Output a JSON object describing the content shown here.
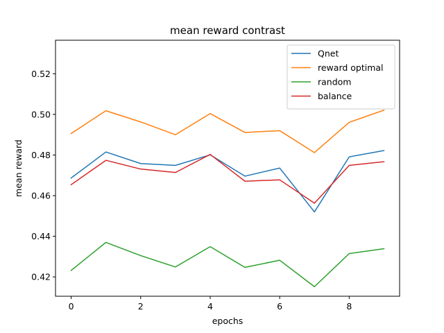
{
  "chart_data": {
    "type": "line",
    "title": "mean reward contrast",
    "xlabel": "epochs",
    "ylabel": "mean reward",
    "x": [
      0,
      1,
      2,
      3,
      4,
      5,
      6,
      7,
      8,
      9
    ],
    "xlim": [
      -0.45,
      9.45
    ],
    "ylim": [
      0.4105,
      0.5365
    ],
    "xticks": [
      0,
      2,
      4,
      6,
      8
    ],
    "yticks": [
      0.42,
      0.44,
      0.46,
      0.48,
      0.5,
      0.52
    ],
    "ytick_labels": [
      "0.42",
      "0.44",
      "0.46",
      "0.48",
      "0.50",
      "0.52"
    ],
    "grid": false,
    "legend_position": "top-right",
    "series": [
      {
        "name": "Qnet",
        "color": "#1f77b4",
        "values": [
          0.4687,
          0.4815,
          0.4758,
          0.4749,
          0.4801,
          0.4696,
          0.4736,
          0.452,
          0.4791,
          0.4822
        ]
      },
      {
        "name": "reward optimal",
        "color": "#ff7f0e",
        "values": [
          0.4906,
          0.5018,
          0.4963,
          0.49,
          0.5004,
          0.4911,
          0.492,
          0.4812,
          0.4961,
          0.5021
        ]
      },
      {
        "name": "random",
        "color": "#2ca02c",
        "values": [
          0.4232,
          0.437,
          0.4305,
          0.4249,
          0.4349,
          0.4247,
          0.4282,
          0.4152,
          0.4315,
          0.4339
        ]
      },
      {
        "name": "balance",
        "color": "#d62728",
        "values": [
          0.4654,
          0.4774,
          0.4731,
          0.4714,
          0.4803,
          0.4671,
          0.4678,
          0.4563,
          0.4749,
          0.4767
        ]
      }
    ]
  }
}
